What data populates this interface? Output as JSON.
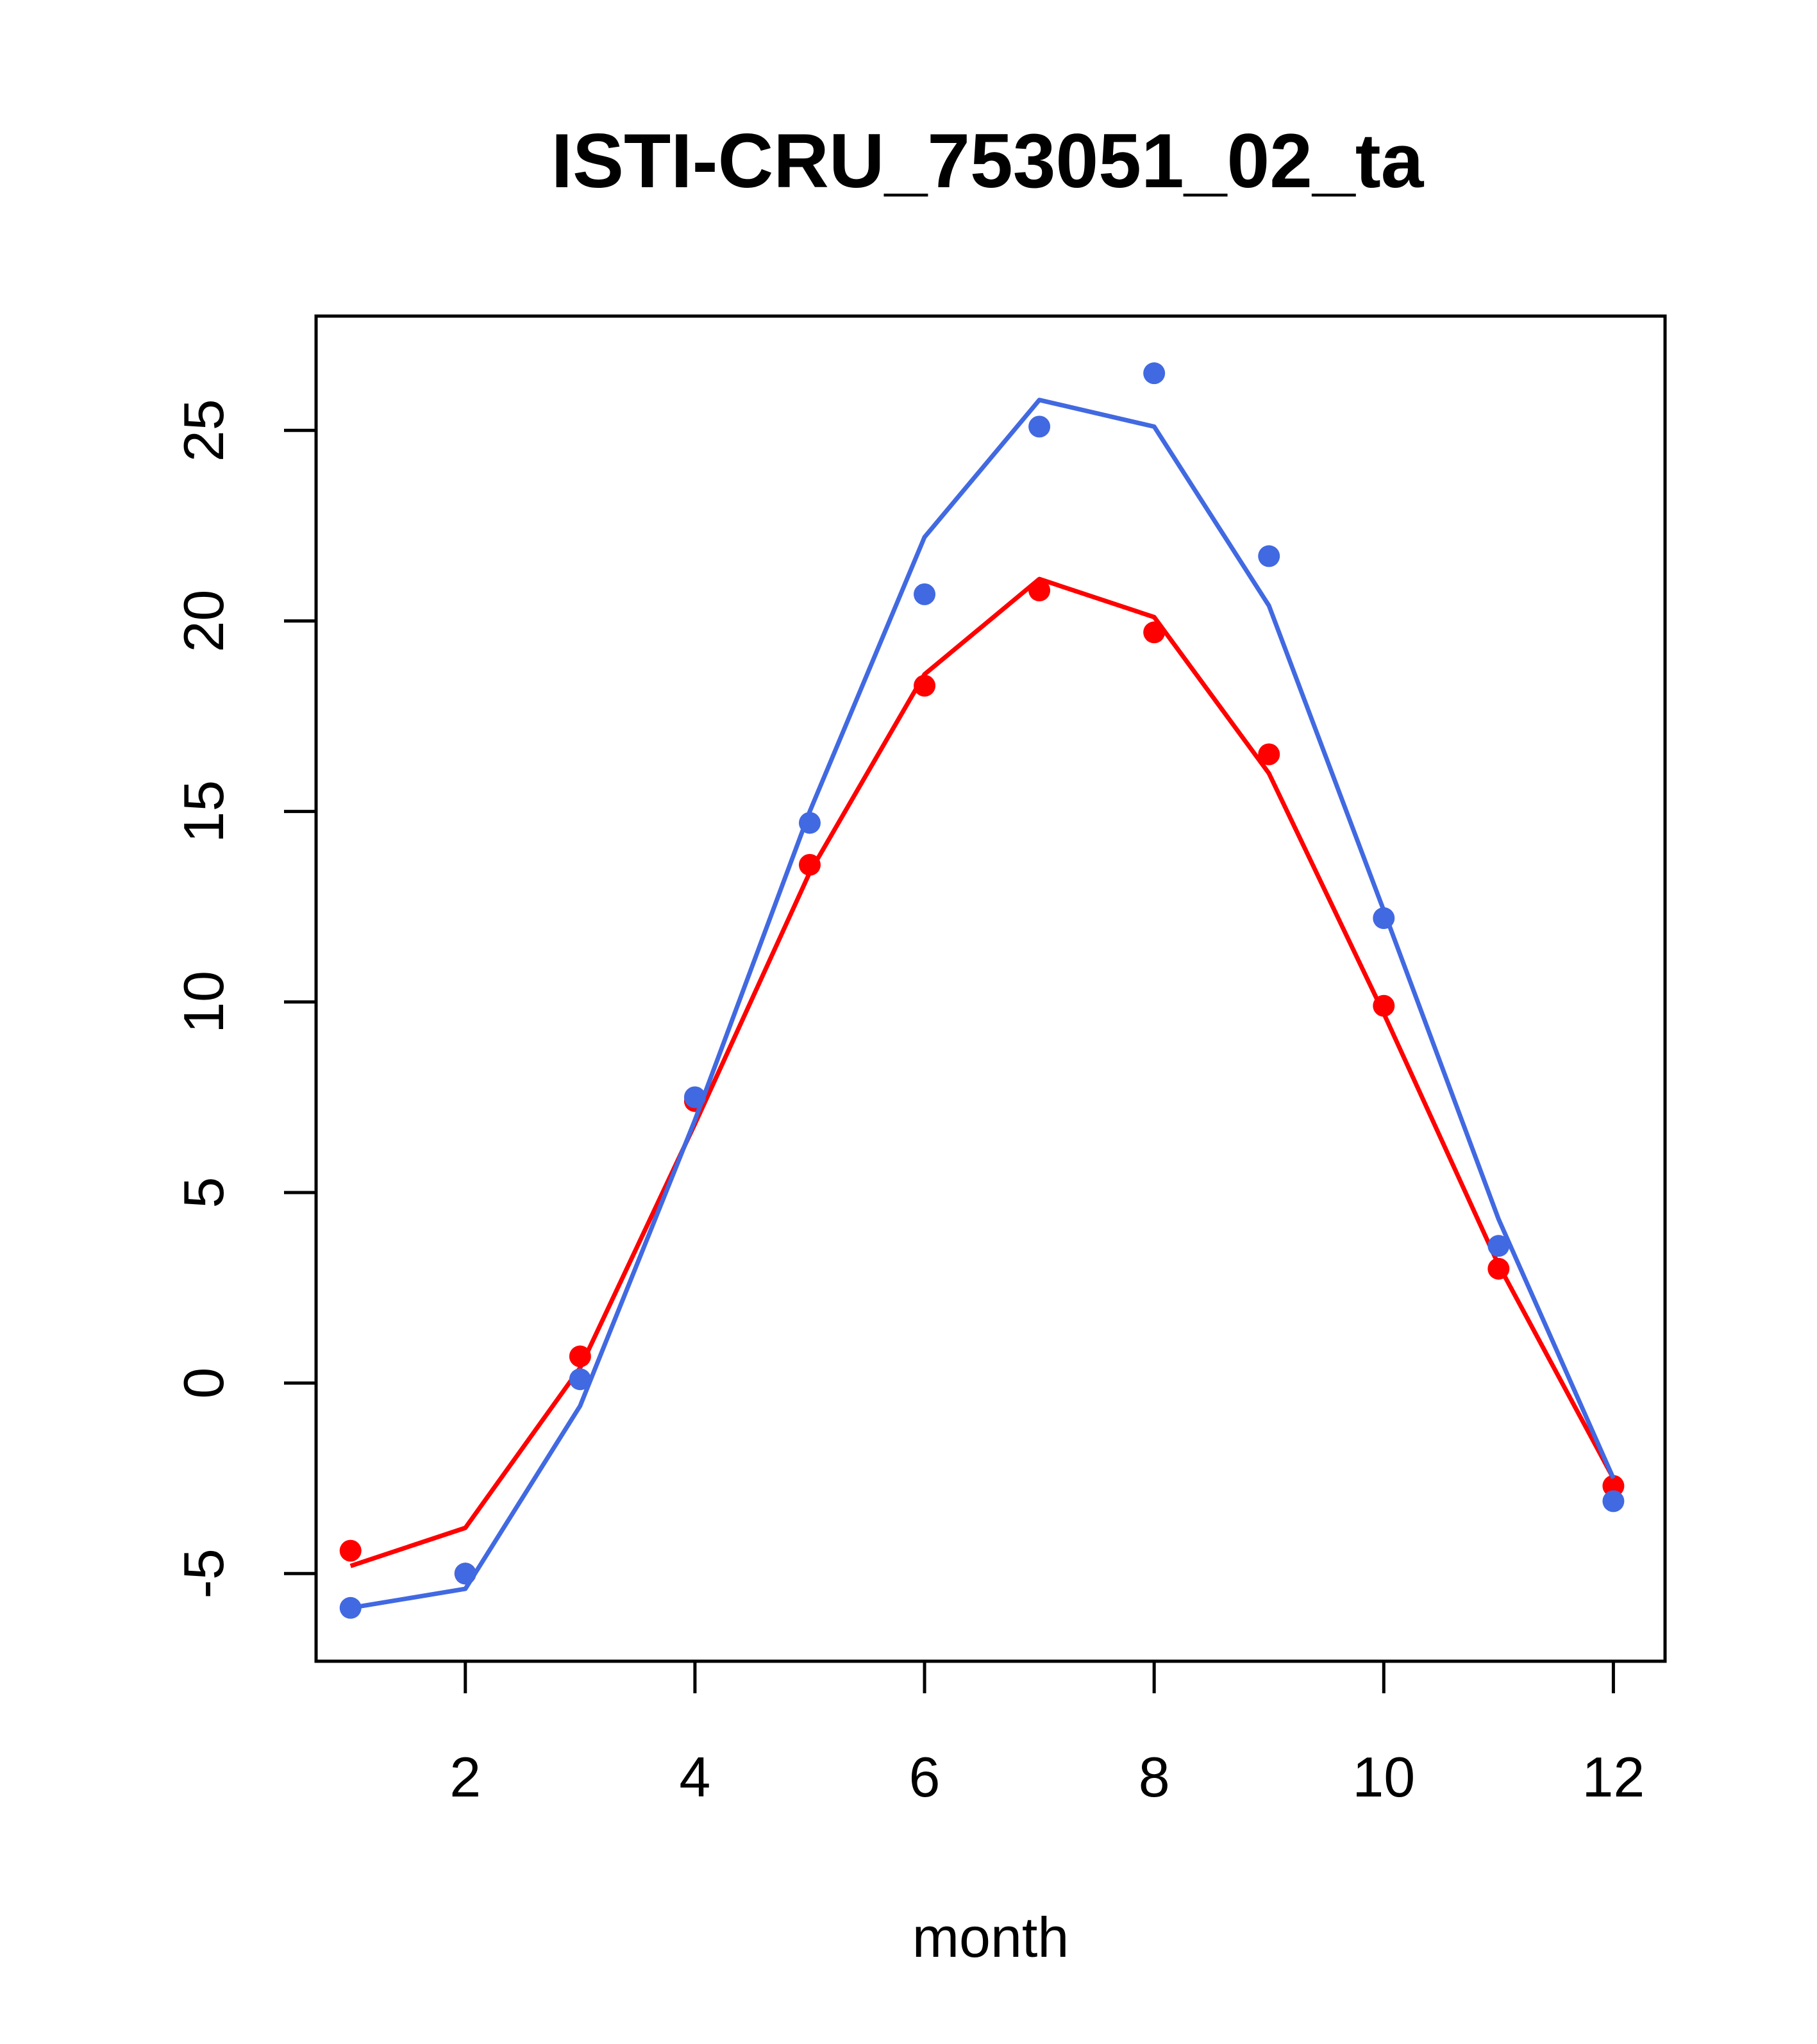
{
  "chart_data": {
    "type": "line",
    "title": "ISTI-CRU_753051_02_ta",
    "xlabel": "month",
    "ylabel": "",
    "xlim": [
      0.7,
      12.45
    ],
    "ylim": [
      -7.3,
      28
    ],
    "x_ticks": [
      2,
      4,
      6,
      8,
      10,
      12
    ],
    "y_ticks": [
      -5,
      0,
      5,
      10,
      15,
      20,
      25
    ],
    "x_tick_labels": [
      "2",
      "4",
      "6",
      "8",
      "10",
      "12"
    ],
    "y_tick_labels": [
      "-5",
      "0",
      "5",
      "10",
      "15",
      "20",
      "25"
    ],
    "x": [
      1,
      2,
      3,
      4,
      5,
      6,
      7,
      8,
      9,
      10,
      11,
      12
    ],
    "series": [
      {
        "color": "#ff0000",
        "points": [
          -4.4,
          -5.0,
          0.7,
          7.4,
          13.6,
          18.3,
          20.8,
          19.7,
          16.5,
          9.9,
          3.0,
          -2.7
        ],
        "line": [
          -4.8,
          -3.8,
          0.4,
          6.8,
          13.4,
          18.6,
          21.1,
          20.1,
          16.0,
          9.7,
          3.1,
          -2.5
        ]
      },
      {
        "color": "#4169e1",
        "points": [
          -5.9,
          -5.0,
          0.1,
          7.5,
          14.7,
          20.7,
          25.1,
          26.5,
          21.7,
          12.2,
          3.6,
          -3.1
        ],
        "line": [
          -5.9,
          -5.4,
          -0.6,
          6.9,
          15.0,
          22.2,
          25.8,
          25.1,
          20.4,
          12.4,
          4.3,
          -2.5
        ]
      }
    ]
  }
}
